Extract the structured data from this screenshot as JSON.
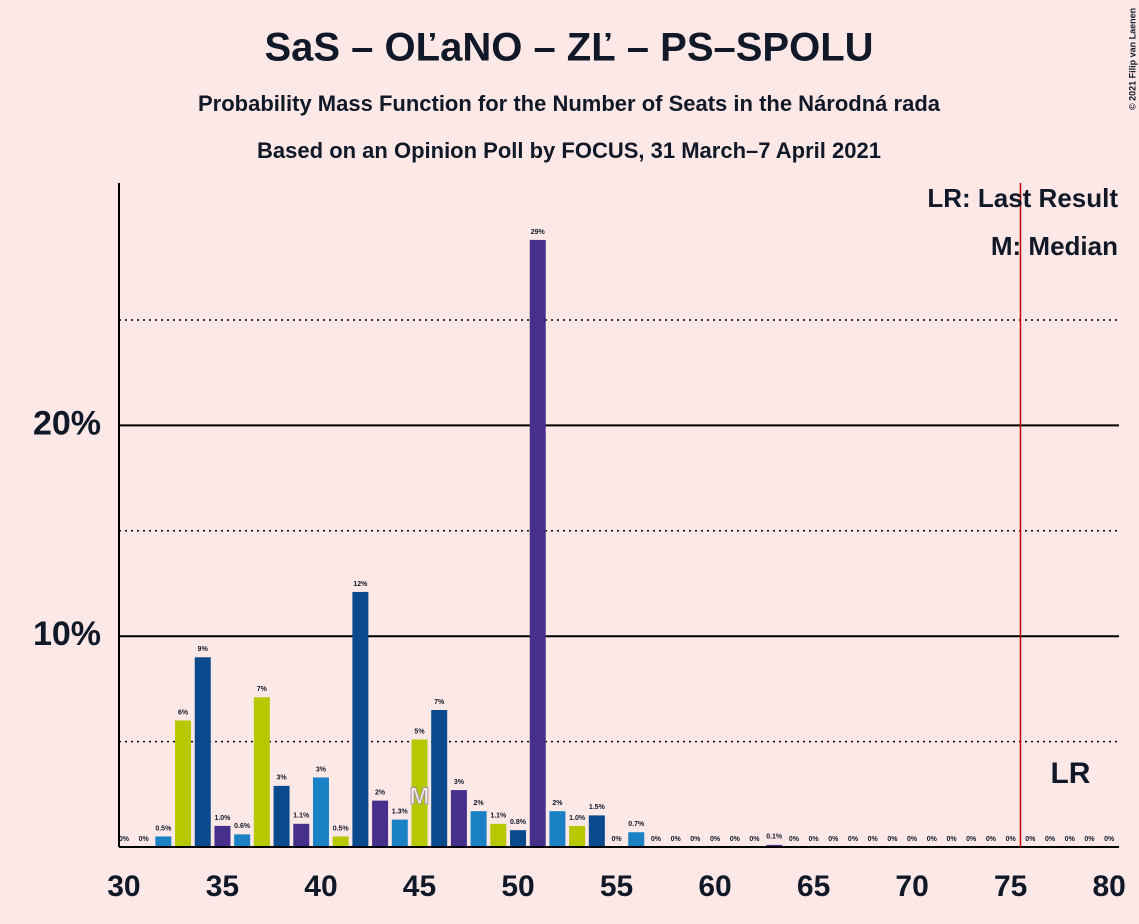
{
  "chart_data": {
    "type": "bar",
    "title": "SaS – OĽaNO – ZĽ – PS–SPOLU",
    "subtitle": "Probability Mass Function for the Number of Seats in the Národná rada",
    "subtitle2": "Based on an Opinion Poll by FOCUS, 31 March–7 April 2021",
    "copyright": "© 2021 Filip van Laenen",
    "x": [
      30,
      31,
      32,
      33,
      34,
      35,
      36,
      37,
      38,
      39,
      40,
      41,
      42,
      43,
      44,
      45,
      46,
      47,
      48,
      49,
      50,
      51,
      52,
      53,
      54,
      55,
      56,
      57,
      58,
      59,
      60,
      61,
      62,
      63,
      64,
      65,
      66,
      67,
      68,
      69,
      70,
      71,
      72,
      73,
      74,
      75,
      76,
      77,
      78,
      79,
      80
    ],
    "values": [
      0,
      0,
      0.5,
      6.0,
      9.0,
      1.0,
      0.6,
      7.1,
      2.9,
      1.1,
      3.3,
      0.5,
      12.1,
      2.2,
      1.3,
      5.1,
      6.5,
      2.7,
      1.7,
      1.1,
      0.8,
      28.8,
      1.7,
      1.0,
      1.5,
      0,
      0.7,
      0,
      0,
      0,
      0,
      0,
      0,
      0.1,
      0,
      0,
      0,
      0,
      0,
      0,
      0,
      0,
      0,
      0,
      0,
      0,
      0,
      0,
      0,
      0,
      0
    ],
    "value_labels": [
      "0%",
      "0%",
      "0.5%",
      "6%",
      "9%",
      "1.0%",
      "0.6%",
      "7%",
      "3%",
      "1.1%",
      "3%",
      "0.5%",
      "12%",
      "2%",
      "1.3%",
      "5%",
      "7%",
      "3%",
      "2%",
      "1.1%",
      "0.8%",
      "29%",
      "2%",
      "1.0%",
      "1.5%",
      "0%",
      "0.7%",
      "0%",
      "0%",
      "0%",
      "0%",
      "0%",
      "0%",
      "0.1%",
      "0%",
      "0%",
      "0%",
      "0%",
      "0%",
      "0%",
      "0%",
      "0%",
      "0%",
      "0%",
      "0%",
      "0%",
      "0%",
      "0%",
      "0%",
      "0%",
      "0%"
    ],
    "palette": [
      "#1a82c4",
      "#b5c800",
      "#0a4a8c",
      "#46308c"
    ],
    "xlim": [
      29.75,
      80.5
    ],
    "xticks": [
      30,
      35,
      40,
      45,
      50,
      55,
      60,
      65,
      70,
      75,
      80
    ],
    "ylim": [
      0,
      31.5
    ],
    "yticks": [
      {
        "value": 10,
        "label": "10%"
      },
      {
        "value": 20,
        "label": "20%"
      }
    ],
    "minor_gridlines": [
      5,
      15,
      25
    ],
    "last_result": 75.5,
    "last_result_label": "LR",
    "last_result_color": "#c00000",
    "median": 45,
    "median_label": "M",
    "legend": [
      "LR: Last Result",
      "M: Median"
    ]
  }
}
